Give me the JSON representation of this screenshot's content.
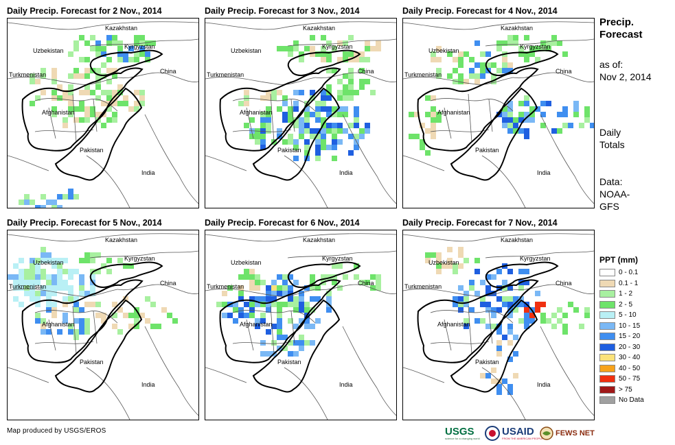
{
  "panels": [
    {
      "title": "Daily Precip. Forecast for 2 Nov., 2014"
    },
    {
      "title": "Daily Precip. Forecast for 3 Nov., 2014"
    },
    {
      "title": "Daily Precip. Forecast for 4 Nov., 2014"
    },
    {
      "title": "Daily Precip. Forecast for 5 Nov., 2014"
    },
    {
      "title": "Daily Precip. Forecast for 6 Nov., 2014"
    },
    {
      "title": "Daily Precip. Forecast for 7 Nov., 2014"
    }
  ],
  "map_labels": {
    "kazakhstan": "Kazakhstan",
    "uzbekistan": "Uzbekistan",
    "kyrgyzstan": "Kyrgyzstan",
    "turkmenistan": "Turkmenistan",
    "china": "China",
    "afghanistan": "Afghanistan",
    "pakistan": "Pakistan",
    "india": "India"
  },
  "sidebar": {
    "title_line1": "Precip.",
    "title_line2": "Forecast",
    "asof_line1": "as of:",
    "asof_line2": "Nov 2, 2014",
    "daily_line1": "Daily",
    "daily_line2": "Totals",
    "data_line1": "Data:",
    "data_line2": "NOAA-",
    "data_line3": "GFS"
  },
  "legend": {
    "title": "PPT (mm)",
    "items": [
      {
        "label": "0 - 0.1",
        "color": "#ffffff"
      },
      {
        "label": "0.1 - 1",
        "color": "#efd9b4"
      },
      {
        "label": "1 - 2",
        "color": "#a8f0a0"
      },
      {
        "label": "2 - 5",
        "color": "#6ee36a"
      },
      {
        "label": "5 - 10",
        "color": "#b9f0f5"
      },
      {
        "label": "10 - 15",
        "color": "#7ab8f5"
      },
      {
        "label": "15 - 20",
        "color": "#3f8ef0"
      },
      {
        "label": "20 - 30",
        "color": "#1f5fe0"
      },
      {
        "label": "30 - 40",
        "color": "#fbe27a"
      },
      {
        "label": "40 - 50",
        "color": "#f7a21a"
      },
      {
        "label": "50 - 75",
        "color": "#f03010"
      },
      {
        "label": "> 75",
        "color": "#a01818"
      },
      {
        "label": "No Data",
        "color": "#a0a0a0"
      }
    ]
  },
  "credit": "Map produced by USGS/EROS",
  "logos": {
    "usgs": "USGS",
    "usgs_sub": "science for a changing world",
    "usaid": "USAID",
    "usaid_sub": "FROM THE AMERICAN PEOPLE",
    "fews": "FEWS NET"
  }
}
